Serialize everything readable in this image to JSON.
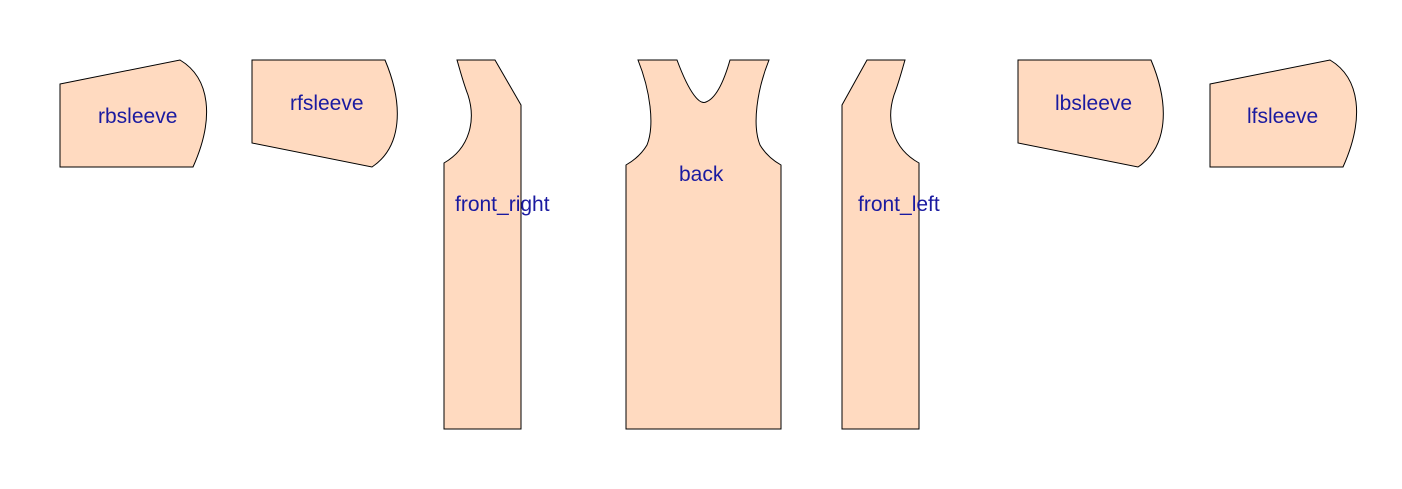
{
  "pattern": {
    "fill_color": "#FFDAC0",
    "outline_color": "#000000",
    "label_color": "#1A1AA0",
    "pieces": [
      {
        "id": "rbsleeve",
        "label": "rbsleeve"
      },
      {
        "id": "rfsleeve",
        "label": "rfsleeve"
      },
      {
        "id": "front_right",
        "label": "front_right"
      },
      {
        "id": "back",
        "label": "back"
      },
      {
        "id": "front_left",
        "label": "front_left"
      },
      {
        "id": "lbsleeve",
        "label": "lbsleeve"
      },
      {
        "id": "lfsleeve",
        "label": "lfsleeve"
      }
    ]
  }
}
